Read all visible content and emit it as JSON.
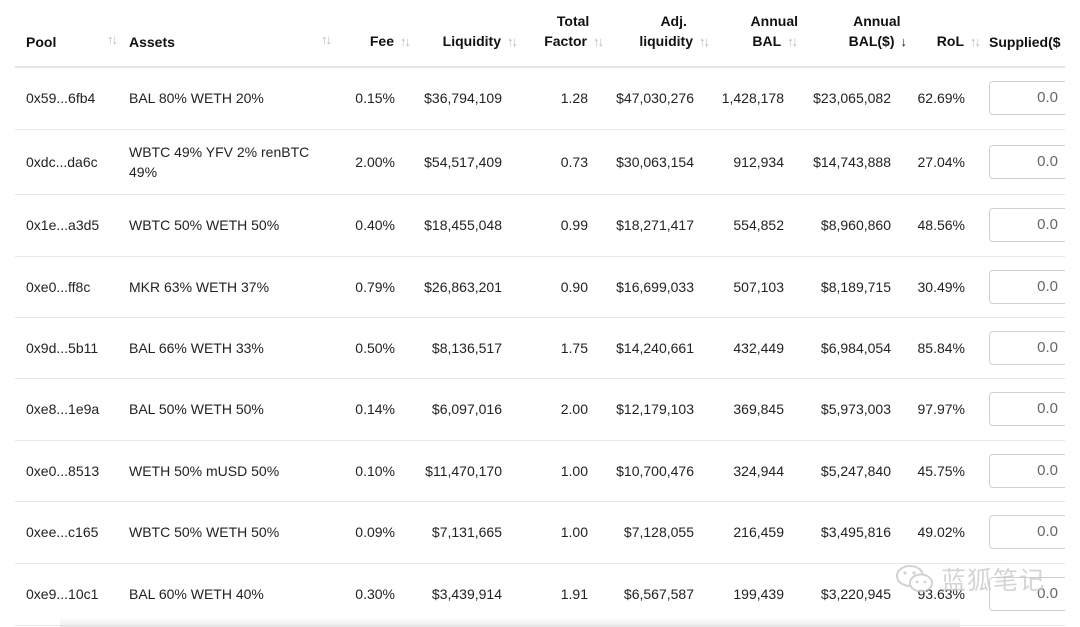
{
  "table": {
    "headers": {
      "pool": [
        "Pool"
      ],
      "assets": [
        "Assets"
      ],
      "fee": [
        "Fee"
      ],
      "liquidity": [
        "Liquidity"
      ],
      "total_factor": [
        "Total",
        "Factor"
      ],
      "adj_liquidity": [
        "Adj.",
        "liquidity"
      ],
      "annual_bal": [
        "Annual",
        "BAL"
      ],
      "annual_bal_usd": [
        "Annual",
        "BAL($)"
      ],
      "rol": [
        "RoL"
      ],
      "supplied": [
        "Supplied($"
      ]
    },
    "sorted_column": "annual_bal_usd",
    "sorted_direction": "descending",
    "rows": [
      {
        "pool": "0x59...6fb4",
        "assets": "BAL 80% WETH 20%",
        "fee": "0.15%",
        "liquidity": "$36,794,109",
        "factor": "1.28",
        "adj": "$47,030,276",
        "bal": "1,428,178",
        "bal_usd": "$23,065,082",
        "rol": "62.69%",
        "supplied": "0.0"
      },
      {
        "pool": "0xdc...da6c",
        "assets": "WBTC 49% YFV 2% renBTC 49%",
        "fee": "2.00%",
        "liquidity": "$54,517,409",
        "factor": "0.73",
        "adj": "$30,063,154",
        "bal": "912,934",
        "bal_usd": "$14,743,888",
        "rol": "27.04%",
        "supplied": "0.0"
      },
      {
        "pool": "0x1e...a3d5",
        "assets": "WBTC 50% WETH 50%",
        "fee": "0.40%",
        "liquidity": "$18,455,048",
        "factor": "0.99",
        "adj": "$18,271,417",
        "bal": "554,852",
        "bal_usd": "$8,960,860",
        "rol": "48.56%",
        "supplied": "0.0"
      },
      {
        "pool": "0xe0...ff8c",
        "assets": "MKR 63% WETH 37%",
        "fee": "0.79%",
        "liquidity": "$26,863,201",
        "factor": "0.90",
        "adj": "$16,699,033",
        "bal": "507,103",
        "bal_usd": "$8,189,715",
        "rol": "30.49%",
        "supplied": "0.0"
      },
      {
        "pool": "0x9d...5b11",
        "assets": "BAL 66% WETH 33%",
        "fee": "0.50%",
        "liquidity": "$8,136,517",
        "factor": "1.75",
        "adj": "$14,240,661",
        "bal": "432,449",
        "bal_usd": "$6,984,054",
        "rol": "85.84%",
        "supplied": "0.0"
      },
      {
        "pool": "0xe8...1e9a",
        "assets": "BAL 50% WETH 50%",
        "fee": "0.14%",
        "liquidity": "$6,097,016",
        "factor": "2.00",
        "adj": "$12,179,103",
        "bal": "369,845",
        "bal_usd": "$5,973,003",
        "rol": "97.97%",
        "supplied": "0.0"
      },
      {
        "pool": "0xe0...8513",
        "assets": "WETH 50% mUSD 50%",
        "fee": "0.10%",
        "liquidity": "$11,470,170",
        "factor": "1.00",
        "adj": "$10,700,476",
        "bal": "324,944",
        "bal_usd": "$5,247,840",
        "rol": "45.75%",
        "supplied": "0.0"
      },
      {
        "pool": "0xee...c165",
        "assets": "WBTC 50% WETH 50%",
        "fee": "0.09%",
        "liquidity": "$7,131,665",
        "factor": "1.00",
        "adj": "$7,128,055",
        "bal": "216,459",
        "bal_usd": "$3,495,816",
        "rol": "49.02%",
        "supplied": "0.0"
      },
      {
        "pool": "0xe9...10c1",
        "assets": "BAL 60% WETH 40%",
        "fee": "0.30%",
        "liquidity": "$3,439,914",
        "factor": "1.91",
        "adj": "$6,567,587",
        "bal": "199,439",
        "bal_usd": "$3,220,945",
        "rol": "93.63%",
        "supplied": "0.0"
      }
    ]
  },
  "watermark": {
    "text": "蓝狐笔记",
    "icon": "wechat-icon"
  }
}
